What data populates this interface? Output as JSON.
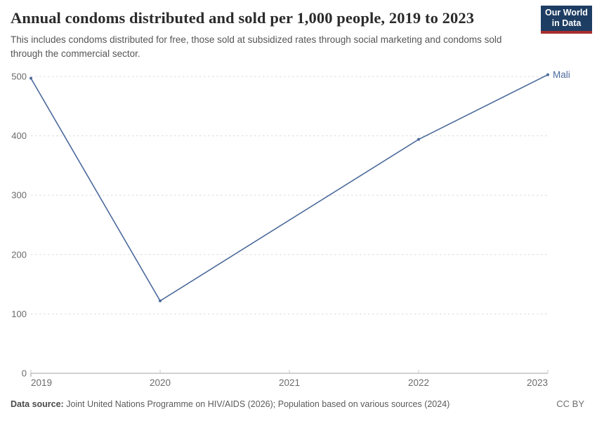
{
  "header": {
    "title": "Annual condoms distributed and sold per 1,000 people, 2019 to 2023",
    "subtitle": "This includes condoms distributed for free, those sold at subsidized rates through social marketing and condoms sold through the commercial sector.",
    "logo": {
      "line1": "Our World",
      "line2": "in Data"
    }
  },
  "chart_data": {
    "type": "line",
    "title": "Annual condoms distributed and sold per 1,000 people, 2019 to 2023",
    "x": [
      2019,
      2020,
      2022,
      2023
    ],
    "series": [
      {
        "name": "Mali",
        "values": [
          497,
          122,
          394,
          503
        ]
      }
    ],
    "xlim": [
      2019,
      2023
    ],
    "ylim": [
      0,
      500
    ],
    "yticks": [
      0,
      100,
      200,
      300,
      400,
      500
    ],
    "xticks": [
      2019,
      2020,
      2021,
      2022,
      2023
    ],
    "grid": "horizontal-dashed",
    "legend": "end-of-line-label",
    "point_markers": true
  },
  "footer": {
    "source_label": "Data source:",
    "source_text": " Joint United Nations Programme on HIV/AIDS (2026); Population based on various sources (2024)",
    "license": "CC BY"
  },
  "colors": {
    "line": "#4c6a9c",
    "entity_label": "#4c6a9c",
    "grid": "#d9d9d9",
    "axis": "#a3a3a3",
    "tick_mark": "#c9c9c9",
    "tick_label": "#6b6b6b",
    "logo_bg": "#1d3d63",
    "logo_red": "#a82e2e",
    "title_text": "#2b2b2b",
    "subtitle_text": "#555555"
  }
}
